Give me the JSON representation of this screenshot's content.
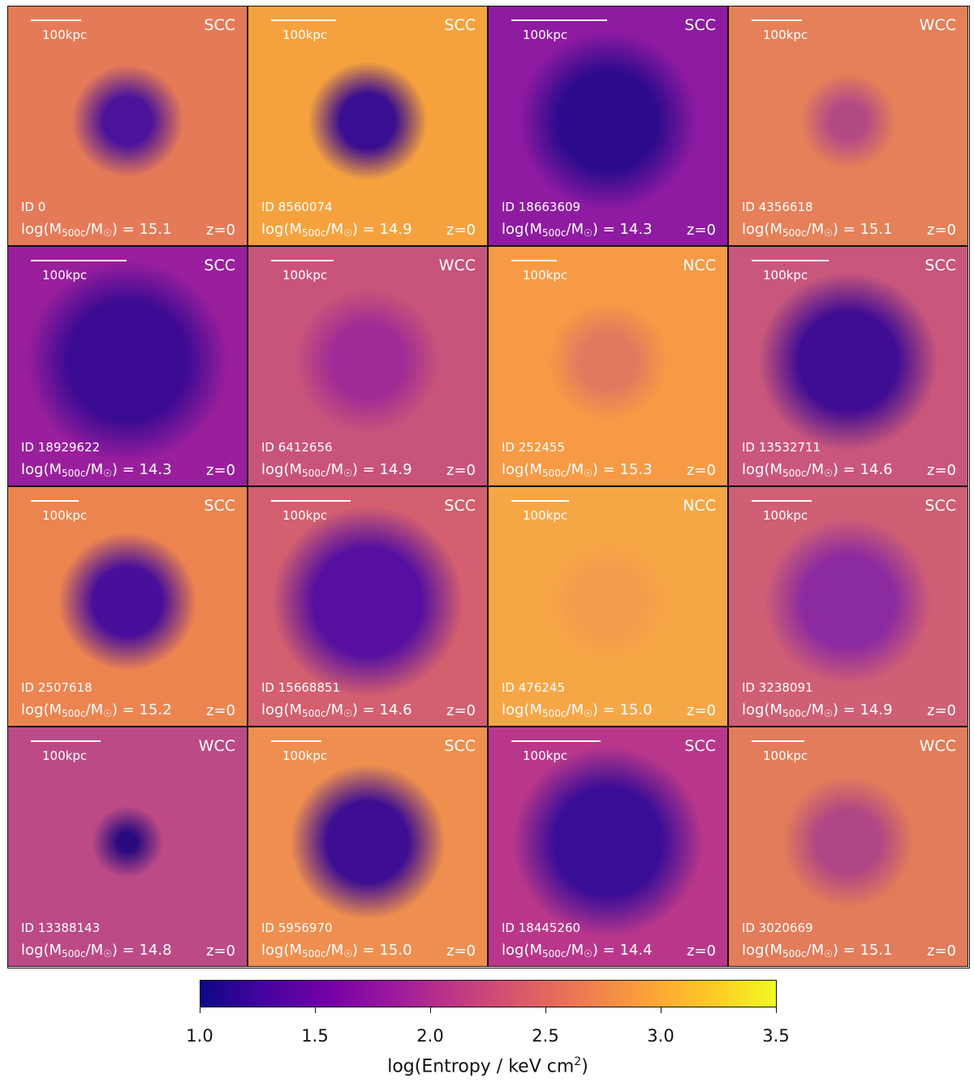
{
  "scale_label": "100kpc",
  "redshift_label": "z=0",
  "mass_label_prefix": "log(M",
  "mass_label_sub": "500c",
  "mass_label_mid": "/M",
  "mass_label_sun": "☉",
  "mass_label_suffix": ") = ",
  "colorbar": {
    "label_main": "log(Entropy / keV cm",
    "label_sup": "2",
    "label_end": ")",
    "min": 1.0,
    "max": 3.5,
    "ticks": [
      "1.0",
      "1.5",
      "2.0",
      "2.5",
      "3.0",
      "3.5"
    ],
    "colormap": "plasma"
  },
  "panels": [
    {
      "type": "SCC",
      "id": "ID 0",
      "logm": "15.1",
      "bg": "#e57a58",
      "core": "#4b139a",
      "core_size": 0.27,
      "scale_frac": 0.21
    },
    {
      "type": "SCC",
      "id": "ID 8560074",
      "logm": "14.9",
      "bg": "#f5a23e",
      "core": "#3a0e90",
      "core_size": 0.3,
      "scale_frac": 0.27
    },
    {
      "type": "SCC",
      "id": "ID 18663609",
      "logm": "14.3",
      "bg": "#8e1ba1",
      "core": "#2b0a8c",
      "core_size": 0.55,
      "scale_frac": 0.4
    },
    {
      "type": "WCC",
      "id": "ID 4356618",
      "logm": "15.1",
      "bg": "#e58059",
      "core": "#b34a86",
      "core_size": 0.2,
      "scale_frac": 0.21
    },
    {
      "type": "SCC",
      "id": "ID 18929622",
      "logm": "14.3",
      "bg": "#9a1f9d",
      "core": "#3a0a92",
      "core_size": 0.65,
      "scale_frac": 0.4
    },
    {
      "type": "WCC",
      "id": "ID 6412656",
      "logm": "14.9",
      "bg": "#c8537b",
      "core": "#9f2b95",
      "core_size": 0.4,
      "scale_frac": 0.26
    },
    {
      "type": "NCC",
      "id": "ID 252455",
      "logm": "15.3",
      "bg": "#f69a45",
      "core": "#e07a5f",
      "core_size": 0.3,
      "scale_frac": 0.19
    },
    {
      "type": "SCC",
      "id": "ID 13532711",
      "logm": "14.6",
      "bg": "#c9577b",
      "core": "#3f0c94",
      "core_size": 0.55,
      "scale_frac": 0.32
    },
    {
      "type": "SCC",
      "id": "ID 2507618",
      "logm": "15.2",
      "bg": "#ec8450",
      "core": "#4a0f9a",
      "core_size": 0.38,
      "scale_frac": 0.2
    },
    {
      "type": "SCC",
      "id": "ID 15668851",
      "logm": "14.6",
      "bg": "#d35f6f",
      "core": "#560fa0",
      "core_size": 0.6,
      "scale_frac": 0.33
    },
    {
      "type": "NCC",
      "id": "ID 476245",
      "logm": "15.0",
      "bg": "#f7a646",
      "core": "#f29a4d",
      "core_size": 0.3,
      "scale_frac": 0.24
    },
    {
      "type": "SCC",
      "id": "ID 3238091",
      "logm": "14.9",
      "bg": "#cf5f75",
      "core": "#8c2aa0",
      "core_size": 0.5,
      "scale_frac": 0.25
    },
    {
      "type": "WCC",
      "id": "ID 13388143",
      "logm": "14.8",
      "bg": "#bb4a86",
      "core": "#2a0a7e",
      "core_size": 0.1,
      "scale_frac": 0.29
    },
    {
      "type": "SCC",
      "id": "ID 5956970",
      "logm": "15.0",
      "bg": "#ee8f4f",
      "core": "#3e0e92",
      "core_size": 0.45,
      "scale_frac": 0.21
    },
    {
      "type": "SCC",
      "id": "ID 18445260",
      "logm": "14.4",
      "bg": "#b9378b",
      "core": "#3a0d97",
      "core_size": 0.6,
      "scale_frac": 0.37
    },
    {
      "type": "WCC",
      "id": "ID 3020669",
      "logm": "15.1",
      "bg": "#e27c5a",
      "core": "#b04685",
      "core_size": 0.35,
      "scale_frac": 0.22
    }
  ]
}
